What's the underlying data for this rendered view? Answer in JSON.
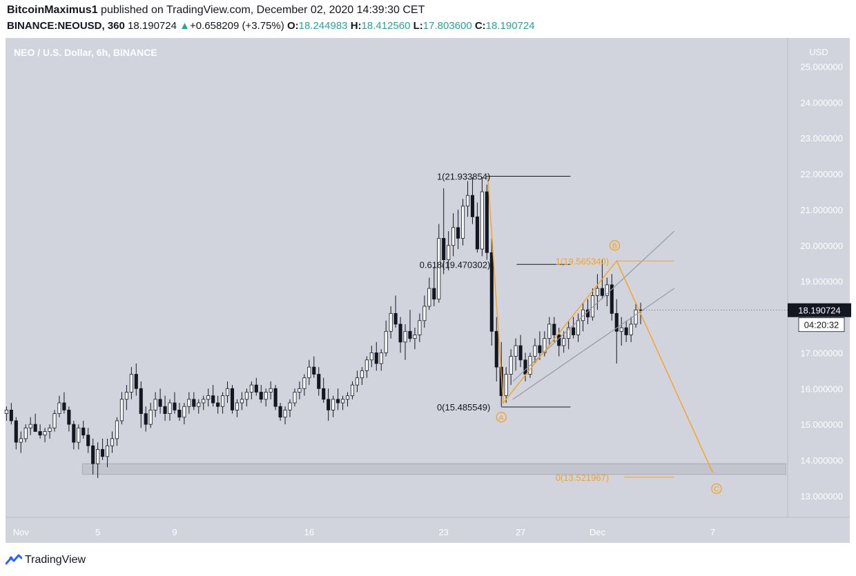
{
  "header": {
    "author": "BitcoinMaximus1",
    "published_text": "published on TradingView.com, December 02, 2020 14:39:30 CET",
    "symbol": "BINANCE:NEOUSD, 360",
    "last": "18.190724",
    "change": "+0.658209 (+3.75%)",
    "open_label": "O:",
    "open": "18.244983",
    "high_label": "H:",
    "high": "18.412560",
    "low_label": "L:",
    "low": "17.803600",
    "close_label": "C:",
    "close": "18.190724"
  },
  "footer": {
    "brand": "TradingView",
    "logo_icon": "tradingview-logo-icon"
  },
  "chart_data": {
    "type": "candlestick",
    "title": "NEO / U.S. Dollar, 6h, BINANCE",
    "currency": "USD",
    "ylim": [
      12.4,
      25.8
    ],
    "y_ticks": [
      "13.000000",
      "14.000000",
      "15.000000",
      "16.000000",
      "17.000000",
      "18.000000",
      "19.000000",
      "20.000000",
      "21.000000",
      "22.000000",
      "23.000000",
      "24.000000",
      "25.000000"
    ],
    "x_ticks": [
      {
        "label": "Nov",
        "day": 1
      },
      {
        "label": "5",
        "day": 5
      },
      {
        "label": "9",
        "day": 9
      },
      {
        "label": "16",
        "day": 16
      },
      {
        "label": "23",
        "day": 23
      },
      {
        "label": "27",
        "day": 27
      },
      {
        "label": "Dec",
        "day": 31
      },
      {
        "label": "7",
        "day": 37
      }
    ],
    "x_domain_days": [
      0.2,
      40.9
    ],
    "price_label": "18.190724",
    "countdown_label": "04:20:32",
    "price_label_color": "#131722",
    "colors": {
      "up_fill": "#ffffff",
      "down_fill": "#131722",
      "wick": "#131722",
      "accent": "#f7a21b",
      "plot_bg": "#d1d4dc"
    },
    "candles": [
      [
        0.25,
        15.3,
        15.5,
        15.1,
        15.4
      ],
      [
        0.5,
        15.4,
        15.6,
        15.0,
        15.1
      ],
      [
        0.75,
        15.1,
        15.2,
        14.3,
        14.5
      ],
      [
        1.0,
        14.5,
        14.8,
        14.2,
        14.6
      ],
      [
        1.25,
        14.6,
        15.0,
        14.5,
        14.9
      ],
      [
        1.5,
        14.9,
        15.2,
        14.7,
        15.0
      ],
      [
        1.75,
        15.0,
        15.3,
        14.8,
        14.8
      ],
      [
        2.0,
        14.8,
        15.0,
        14.6,
        14.7
      ],
      [
        2.25,
        14.7,
        14.9,
        14.5,
        14.8
      ],
      [
        2.5,
        14.8,
        15.0,
        14.6,
        14.9
      ],
      [
        2.75,
        14.9,
        15.4,
        14.8,
        15.3
      ],
      [
        3.0,
        15.3,
        15.8,
        15.2,
        15.6
      ],
      [
        3.25,
        15.6,
        15.9,
        15.3,
        15.4
      ],
      [
        3.5,
        15.4,
        15.5,
        14.8,
        15.0
      ],
      [
        3.75,
        15.0,
        15.1,
        14.3,
        14.5
      ],
      [
        4.0,
        14.5,
        15.0,
        14.3,
        14.9
      ],
      [
        4.25,
        14.9,
        15.1,
        14.6,
        14.7
      ],
      [
        4.5,
        14.7,
        14.9,
        14.2,
        14.4
      ],
      [
        4.75,
        14.4,
        14.6,
        13.6,
        13.9
      ],
      [
        5.0,
        13.9,
        14.5,
        13.5,
        14.3
      ],
      [
        5.25,
        14.3,
        14.6,
        14.0,
        14.1
      ],
      [
        5.5,
        14.1,
        14.6,
        13.8,
        14.4
      ],
      [
        5.75,
        14.4,
        14.8,
        14.2,
        14.6
      ],
      [
        6.0,
        14.6,
        15.2,
        14.4,
        15.1
      ],
      [
        6.25,
        15.1,
        15.9,
        15.0,
        15.7
      ],
      [
        6.5,
        15.7,
        16.1,
        15.4,
        15.9
      ],
      [
        6.75,
        15.9,
        16.6,
        15.7,
        16.4
      ],
      [
        7.0,
        16.4,
        16.7,
        15.8,
        16.0
      ],
      [
        7.25,
        16.0,
        16.2,
        14.9,
        15.3
      ],
      [
        7.5,
        15.3,
        15.5,
        14.8,
        15.0
      ],
      [
        7.75,
        15.0,
        15.6,
        14.9,
        15.4
      ],
      [
        8.0,
        15.4,
        15.9,
        15.2,
        15.7
      ],
      [
        8.25,
        15.7,
        16.0,
        15.3,
        15.5
      ],
      [
        8.5,
        15.5,
        15.8,
        15.1,
        15.3
      ],
      [
        8.75,
        15.3,
        15.7,
        15.1,
        15.6
      ],
      [
        9.0,
        15.6,
        15.9,
        15.3,
        15.4
      ],
      [
        9.25,
        15.4,
        15.6,
        15.1,
        15.2
      ],
      [
        9.5,
        15.2,
        15.6,
        15.0,
        15.5
      ],
      [
        9.75,
        15.5,
        15.9,
        15.3,
        15.7
      ],
      [
        10.0,
        15.7,
        15.9,
        15.4,
        15.5
      ],
      [
        10.25,
        15.5,
        15.7,
        15.3,
        15.6
      ],
      [
        10.5,
        15.6,
        15.8,
        15.4,
        15.7
      ],
      [
        10.75,
        15.7,
        16.0,
        15.5,
        15.8
      ],
      [
        11.0,
        15.8,
        16.1,
        15.5,
        15.6
      ],
      [
        11.25,
        15.6,
        15.8,
        15.3,
        15.5
      ],
      [
        11.5,
        15.5,
        15.9,
        15.3,
        15.8
      ],
      [
        11.75,
        15.8,
        16.2,
        15.6,
        16.0
      ],
      [
        12.0,
        16.0,
        16.1,
        15.3,
        15.4
      ],
      [
        12.25,
        15.4,
        15.7,
        15.2,
        15.6
      ],
      [
        12.5,
        15.6,
        15.9,
        15.4,
        15.7
      ],
      [
        12.75,
        15.7,
        16.0,
        15.5,
        15.9
      ],
      [
        13.0,
        15.9,
        16.2,
        15.7,
        16.1
      ],
      [
        13.25,
        16.1,
        16.3,
        15.8,
        15.9
      ],
      [
        13.5,
        15.9,
        16.1,
        15.6,
        15.7
      ],
      [
        13.75,
        15.7,
        16.0,
        15.5,
        15.9
      ],
      [
        14.0,
        15.9,
        16.2,
        15.7,
        16.0
      ],
      [
        14.25,
        16.0,
        16.1,
        15.4,
        15.5
      ],
      [
        14.5,
        15.5,
        15.6,
        15.1,
        15.2
      ],
      [
        14.75,
        15.2,
        15.5,
        15.0,
        15.4
      ],
      [
        15.0,
        15.4,
        15.7,
        15.2,
        15.6
      ],
      [
        15.25,
        15.6,
        16.0,
        15.5,
        15.9
      ],
      [
        15.5,
        15.9,
        16.2,
        15.7,
        16.0
      ],
      [
        15.75,
        16.0,
        16.4,
        15.8,
        16.3
      ],
      [
        16.0,
        16.3,
        16.8,
        16.1,
        16.6
      ],
      [
        16.25,
        16.6,
        16.9,
        16.3,
        16.4
      ],
      [
        16.5,
        16.4,
        16.6,
        15.8,
        16.0
      ],
      [
        16.75,
        16.0,
        16.3,
        15.6,
        15.7
      ],
      [
        17.0,
        15.7,
        16.0,
        15.1,
        15.4
      ],
      [
        17.25,
        15.4,
        15.8,
        15.2,
        15.7
      ],
      [
        17.5,
        15.7,
        16.0,
        15.4,
        15.6
      ],
      [
        17.75,
        15.6,
        15.8,
        15.4,
        15.7
      ],
      [
        18.0,
        15.7,
        15.9,
        15.5,
        15.8
      ],
      [
        18.25,
        15.8,
        16.2,
        15.7,
        16.1
      ],
      [
        18.5,
        16.1,
        16.5,
        15.9,
        16.3
      ],
      [
        18.75,
        16.3,
        16.6,
        16.1,
        16.5
      ],
      [
        19.0,
        16.5,
        16.9,
        16.3,
        16.8
      ],
      [
        19.25,
        16.8,
        17.2,
        16.6,
        17.0
      ],
      [
        19.5,
        17.0,
        17.3,
        16.5,
        16.7
      ],
      [
        19.75,
        16.7,
        17.1,
        16.5,
        17.0
      ],
      [
        20.0,
        17.0,
        17.9,
        16.9,
        17.6
      ],
      [
        20.25,
        17.6,
        18.3,
        17.4,
        18.1
      ],
      [
        20.5,
        18.1,
        18.6,
        17.7,
        17.8
      ],
      [
        20.75,
        17.8,
        18.0,
        17.0,
        17.3
      ],
      [
        21.0,
        17.3,
        17.8,
        16.8,
        17.6
      ],
      [
        21.25,
        17.6,
        18.2,
        17.3,
        17.4
      ],
      [
        21.5,
        17.4,
        17.7,
        17.1,
        17.5
      ],
      [
        21.75,
        17.5,
        18.1,
        17.3,
        17.9
      ],
      [
        22.0,
        17.9,
        18.6,
        17.7,
        18.3
      ],
      [
        22.25,
        18.3,
        19.1,
        18.2,
        18.8
      ],
      [
        22.5,
        18.8,
        19.4,
        18.3,
        18.5
      ],
      [
        22.75,
        18.5,
        20.6,
        18.4,
        20.2
      ],
      [
        23.0,
        20.2,
        21.6,
        19.2,
        19.6
      ],
      [
        23.25,
        19.6,
        20.4,
        19.3,
        20.0
      ],
      [
        23.5,
        20.0,
        20.9,
        19.7,
        20.5
      ],
      [
        23.75,
        20.5,
        21.0,
        19.9,
        20.2
      ],
      [
        24.0,
        20.2,
        21.3,
        20.0,
        21.1
      ],
      [
        24.25,
        21.1,
        21.8,
        20.8,
        21.4
      ],
      [
        24.5,
        21.4,
        21.9,
        20.6,
        20.8
      ],
      [
        24.75,
        20.8,
        21.2,
        19.8,
        19.9
      ],
      [
        25.0,
        19.9,
        21.9,
        19.7,
        21.5
      ],
      [
        25.25,
        21.5,
        21.7,
        19.6,
        19.8
      ],
      [
        25.5,
        19.8,
        20.2,
        17.2,
        17.6
      ],
      [
        25.75,
        17.6,
        18.0,
        16.2,
        16.6
      ],
      [
        26.0,
        16.6,
        17.3,
        15.5,
        15.8
      ],
      [
        26.25,
        15.8,
        16.6,
        15.6,
        16.4
      ],
      [
        26.5,
        16.4,
        17.1,
        16.1,
        16.9
      ],
      [
        26.75,
        16.9,
        17.4,
        16.5,
        17.2
      ],
      [
        27.0,
        17.2,
        17.5,
        16.6,
        16.8
      ],
      [
        27.25,
        16.8,
        17.0,
        16.2,
        16.4
      ],
      [
        27.5,
        16.4,
        17.0,
        16.3,
        16.9
      ],
      [
        27.75,
        16.9,
        17.4,
        16.7,
        17.2
      ],
      [
        28.0,
        17.2,
        17.6,
        16.8,
        17.0
      ],
      [
        28.25,
        17.0,
        17.6,
        16.9,
        17.4
      ],
      [
        28.5,
        17.4,
        18.0,
        17.2,
        17.8
      ],
      [
        28.75,
        17.8,
        18.0,
        17.3,
        17.5
      ],
      [
        29.0,
        17.5,
        17.7,
        16.9,
        17.2
      ],
      [
        29.25,
        17.2,
        17.6,
        17.0,
        17.4
      ],
      [
        29.5,
        17.4,
        17.9,
        17.1,
        17.7
      ],
      [
        29.75,
        17.7,
        18.0,
        17.4,
        17.5
      ],
      [
        30.0,
        17.5,
        18.1,
        17.3,
        17.9
      ],
      [
        30.25,
        17.9,
        18.4,
        17.6,
        18.2
      ],
      [
        30.5,
        18.2,
        18.5,
        17.8,
        18.0
      ],
      [
        30.75,
        18.0,
        18.8,
        17.9,
        18.6
      ],
      [
        31.0,
        18.6,
        19.2,
        18.2,
        18.8
      ],
      [
        31.25,
        18.8,
        19.6,
        18.5,
        18.6
      ],
      [
        31.5,
        18.6,
        19.1,
        18.3,
        18.9
      ],
      [
        31.75,
        18.9,
        19.2,
        17.9,
        18.1
      ],
      [
        32.0,
        18.1,
        18.5,
        16.7,
        17.6
      ],
      [
        32.25,
        17.6,
        18.0,
        17.2,
        17.7
      ],
      [
        32.5,
        17.7,
        17.9,
        17.3,
        17.5
      ],
      [
        32.75,
        17.5,
        18.0,
        17.3,
        17.8
      ],
      [
        33.0,
        17.8,
        18.4,
        17.7,
        18.2
      ],
      [
        33.25,
        18.2,
        18.4,
        17.8,
        18.19
      ]
    ],
    "fib_impulse": {
      "levels": [
        {
          "label": "1(21.933854)",
          "value": 21.933854
        },
        {
          "label": "0.618(19.470302)",
          "value": 19.470302
        },
        {
          "label": "0(15.485549)",
          "value": 15.485549
        }
      ]
    },
    "fib_abc": {
      "levels": [
        {
          "label": "1(19.565340)",
          "value": 19.56534
        },
        {
          "label": "0(13.521967)",
          "value": 13.521967
        }
      ]
    },
    "wave_labels": [
      {
        "label": "A",
        "day": 26.0,
        "value": 15.2
      },
      {
        "label": "B",
        "day": 31.9,
        "value": 20.0
      },
      {
        "label": "C",
        "day": 37.2,
        "value": 13.2
      }
    ],
    "abc_path": [
      {
        "day": 25.3,
        "value": 21.9
      },
      {
        "day": 26.1,
        "value": 15.6
      },
      {
        "day": 32.0,
        "value": 19.57
      },
      {
        "day": 37.0,
        "value": 13.65
      }
    ],
    "channel_lines": [
      {
        "from": {
          "day": 26.6,
          "value": 16.2
        },
        "to": {
          "day": 35.0,
          "value": 20.4
        }
      },
      {
        "from": {
          "day": 26.6,
          "value": 15.7
        },
        "to": {
          "day": 35.0,
          "value": 18.8
        }
      }
    ],
    "support_zone": {
      "from_day": 4.2,
      "to_day": 40.8,
      "low": 13.6,
      "high": 13.9
    }
  }
}
